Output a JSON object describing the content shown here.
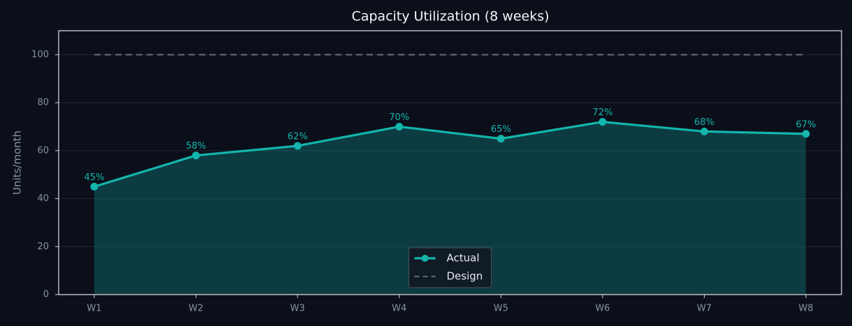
{
  "chart_data": {
    "type": "line",
    "title": "Capacity Utilization (8 weeks)",
    "y_label": "Units/month",
    "categories": [
      "W1",
      "W2",
      "W3",
      "W4",
      "W5",
      "W6",
      "W7",
      "W8"
    ],
    "series": [
      {
        "name": "Actual",
        "color": "#13b5ac",
        "area": true,
        "markers": true,
        "dashed": false,
        "values": [
          45,
          58,
          62,
          70,
          65,
          72,
          68,
          67
        ],
        "value_labels": [
          "45%",
          "58%",
          "62%",
          "70%",
          "65%",
          "72%",
          "68%",
          "67%"
        ]
      },
      {
        "name": "Design",
        "color": "#5d6673",
        "area": false,
        "markers": false,
        "dashed": true,
        "values": [
          100,
          100,
          100,
          100,
          100,
          100,
          100,
          100
        ]
      }
    ],
    "ylim": [
      0,
      110
    ],
    "yticks": [
      0,
      20,
      40,
      60,
      80,
      100
    ],
    "grid": true,
    "legend": "lower center"
  }
}
